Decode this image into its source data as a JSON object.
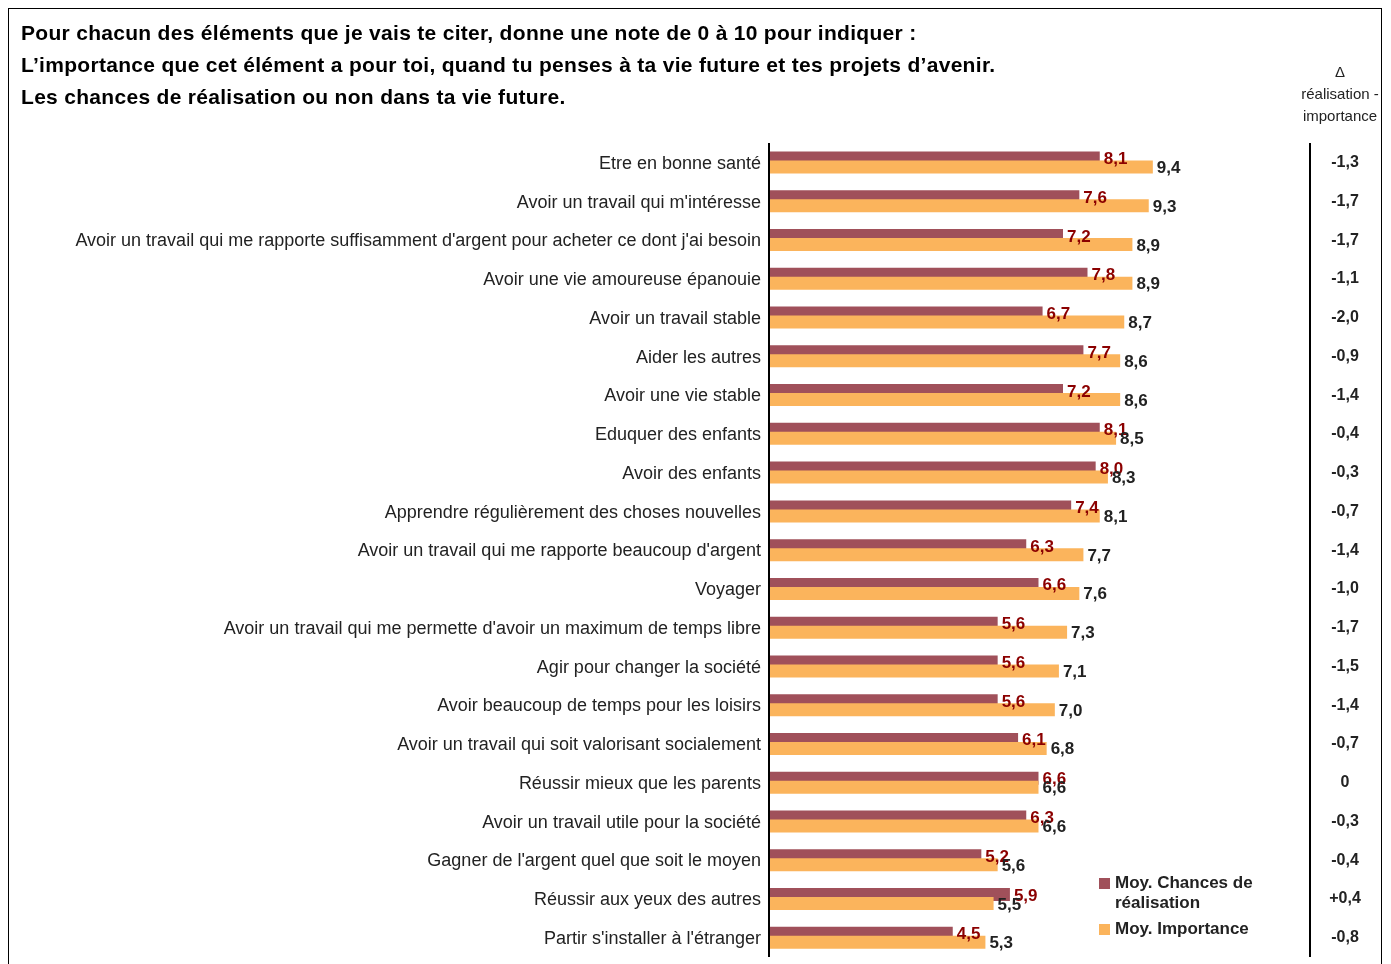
{
  "chart_data": {
    "type": "bar",
    "orientation": "horizontal",
    "title": "Pour chacun des éléments que je vais te citer, donne une note de 0 à 10 pour indiquer :\nL’importance que cet élément a pour toi, quand tu penses à ta vie future et tes projets d’avenir.\nLes chances de réalisation ou non dans ta vie future.",
    "categories": [
      "Etre en bonne santé",
      "Avoir un travail qui m'intéresse",
      "Avoir un travail qui me rapporte suffisamment d'argent pour acheter ce dont j'ai besoin",
      "Avoir une vie amoureuse épanouie",
      "Avoir un travail stable",
      "Aider les autres",
      "Avoir une vie stable",
      "Eduquer des enfants",
      "Avoir des enfants",
      "Apprendre régulièrement des choses nouvelles",
      "Avoir un travail qui me rapporte beaucoup d'argent",
      "Voyager",
      "Avoir un travail qui me permette d'avoir un maximum de temps libre",
      "Agir pour changer la société",
      "Avoir beaucoup de temps pour les loisirs",
      "Avoir un travail qui soit valorisant socialement",
      "Réussir mieux que les parents",
      "Avoir un travail utile pour la société",
      "Gagner de l'argent quel que soit le moyen",
      "Réussir aux yeux des autres",
      "Partir s'installer à l'étranger"
    ],
    "series": [
      {
        "name": "Moy. Chances de réalisation",
        "color": "#a0505a",
        "values": [
          8.1,
          7.6,
          7.2,
          7.8,
          6.7,
          7.7,
          7.2,
          8.1,
          8.0,
          7.4,
          6.3,
          6.6,
          5.6,
          5.6,
          5.6,
          6.1,
          6.6,
          6.3,
          5.2,
          5.9,
          4.5
        ],
        "value_labels": [
          "8,1",
          "7,6",
          "7,2",
          "7,8",
          "6,7",
          "7,7",
          "7,2",
          "8,1",
          "8,0",
          "7,4",
          "6,3",
          "6,6",
          "5,6",
          "5,6",
          "5,6",
          "6,1",
          "6,6",
          "6,3",
          "5,2",
          "5,9",
          "4,5"
        ]
      },
      {
        "name": "Moy. Importance",
        "color": "#fbb45c",
        "values": [
          9.4,
          9.3,
          8.9,
          8.9,
          8.7,
          8.6,
          8.6,
          8.5,
          8.3,
          8.1,
          7.7,
          7.6,
          7.3,
          7.1,
          7.0,
          6.8,
          6.6,
          6.6,
          5.6,
          5.5,
          5.3
        ],
        "value_labels": [
          "9,4",
          "9,3",
          "8,9",
          "8,9",
          "8,7",
          "8,6",
          "8,6",
          "8,5",
          "8,3",
          "8,1",
          "7,7",
          "7,6",
          "7,3",
          "7,1",
          "7,0",
          "6,8",
          "6,6",
          "6,6",
          "5,6",
          "5,5",
          "5,3"
        ]
      }
    ],
    "tick_labels": "y",
    "legend": "bottom right",
    "annotations": [
      "Δ réalisation - importance",
      "-1,3",
      "-1,7",
      "-1,7",
      "-1,1",
      "-2,0",
      "-0,9",
      "-1,4",
      "-0,4",
      "-0,3",
      "-0,7",
      "-1,4",
      "-1,0",
      "-1,7",
      "-1,5",
      "-1,4",
      "-0,7",
      "0",
      "-0,3",
      "-0,4",
      "+0,4",
      "-0,8"
    ]
  }
}
